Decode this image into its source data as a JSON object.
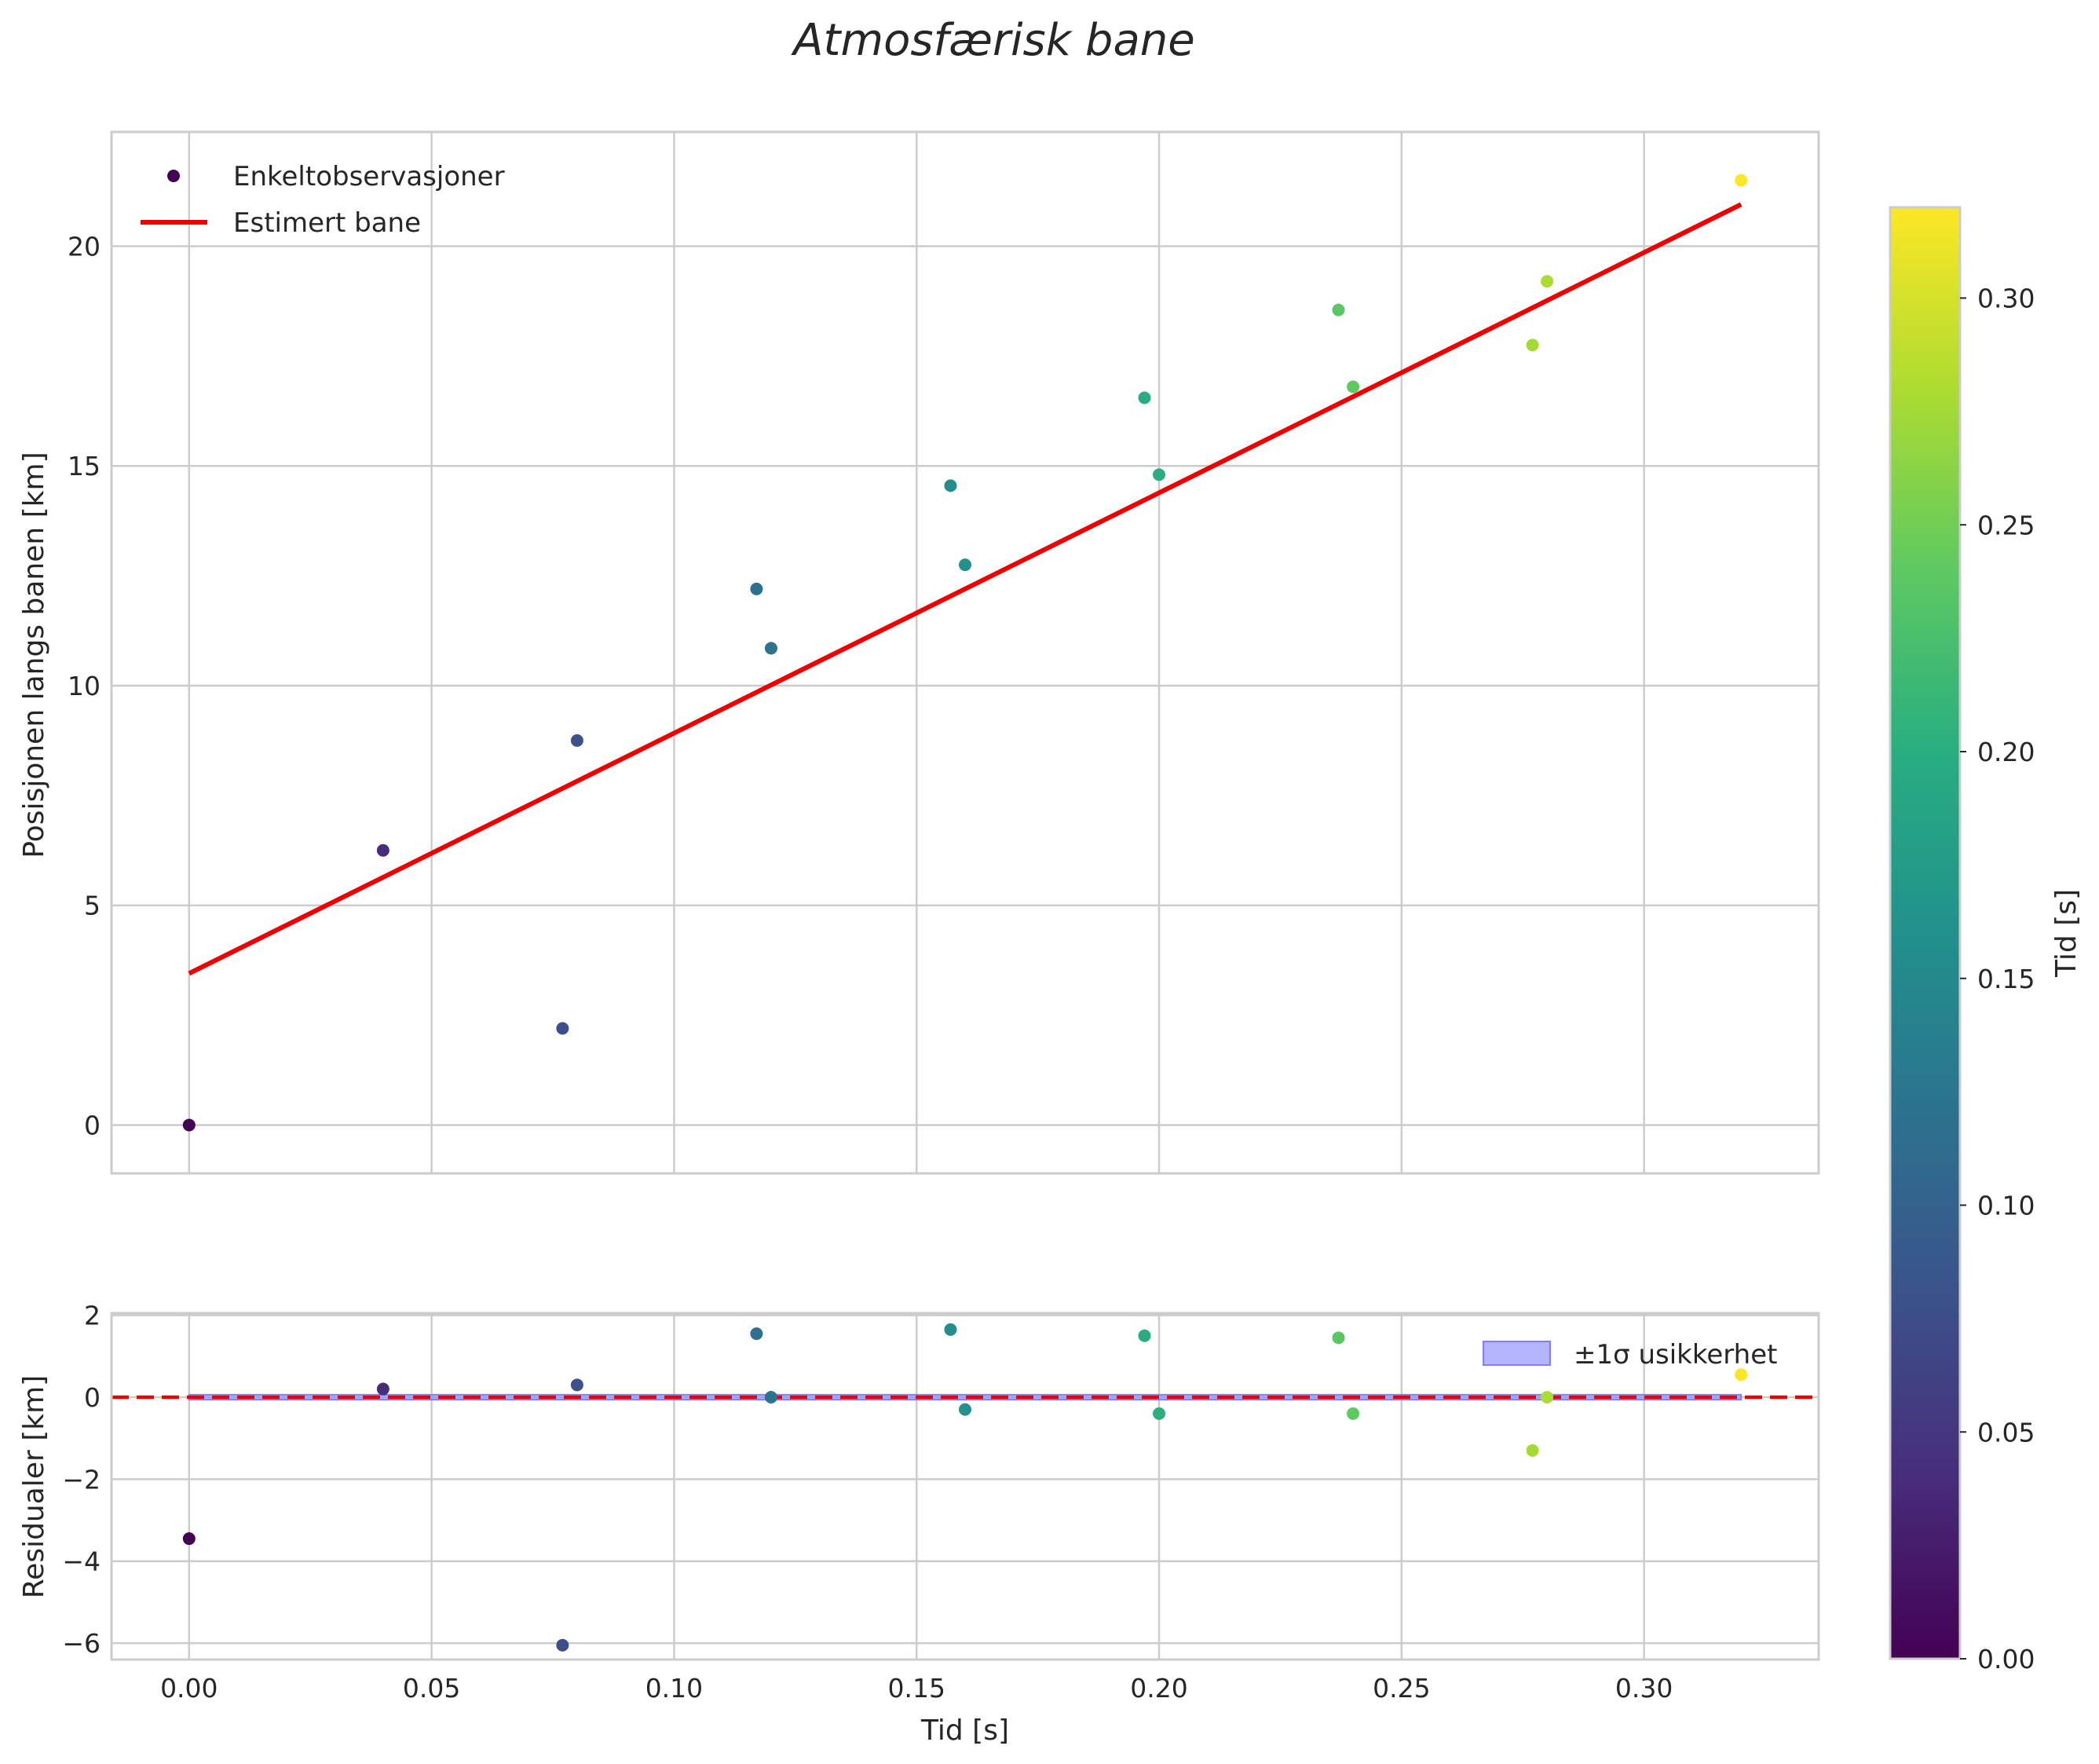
{
  "chart_data": {
    "title": "Atmosfærisk bane",
    "colormap": "viridis",
    "top_panel": {
      "type": "scatter",
      "ylabel": "Posisjonen langs banen [km]",
      "xlim": [
        -0.016,
        0.336
      ],
      "ylim": [
        -1.1,
        22.6
      ],
      "yticks": [
        0,
        5,
        10,
        15,
        20
      ],
      "grid": true,
      "legend": {
        "placement": "top-left",
        "scatter_label": "Enkeltobservasjoner",
        "line_label": "Estimert bane"
      },
      "observations": {
        "t": [
          0.0,
          0.04,
          0.077,
          0.08,
          0.117,
          0.12,
          0.157,
          0.16,
          0.197,
          0.2,
          0.237,
          0.24,
          0.277,
          0.28,
          0.32
        ],
        "pos": [
          0.0,
          6.25,
          2.2,
          8.75,
          12.2,
          10.85,
          14.55,
          12.75,
          16.55,
          14.8,
          18.55,
          16.8,
          17.75,
          19.2,
          21.5
        ]
      },
      "fit_line": {
        "color": "#ee0000",
        "t": [
          0.0,
          0.32
        ],
        "pos": [
          3.45,
          20.95
        ]
      }
    },
    "bottom_panel": {
      "type": "scatter",
      "ylabel": "Residualer [km]",
      "xlabel": "Tid [s]",
      "xlim": [
        -0.016,
        0.336
      ],
      "ylim": [
        -6.4,
        2.05
      ],
      "yticks": [
        -6,
        -4,
        -2,
        0,
        2
      ],
      "xticks": [
        0.0,
        0.05,
        0.1,
        0.15,
        0.2,
        0.25,
        0.3
      ],
      "xtick_labels": [
        "0.00",
        "0.05",
        "0.10",
        "0.15",
        "0.20",
        "0.25",
        "0.30"
      ],
      "zero_line_color": "#ee0000",
      "band": {
        "label": "±1σ usikkerhet",
        "sigma": 0.06,
        "color": "#8080ff"
      },
      "legend": {
        "placement": "top-right"
      },
      "residuals": [
        -3.45,
        0.2,
        -6.05,
        0.3,
        1.55,
        0.0,
        1.65,
        -0.3,
        1.5,
        -0.4,
        1.45,
        -0.4,
        -1.3,
        0.0,
        0.55
      ]
    },
    "colorbar": {
      "label": "Tid [s]",
      "range": [
        0.0,
        0.32
      ],
      "ticks": [
        0.0,
        0.05,
        0.1,
        0.15,
        0.2,
        0.25,
        0.3
      ],
      "tick_labels": [
        "0.00",
        "0.05",
        "0.10",
        "0.15",
        "0.20",
        "0.25",
        "0.30"
      ]
    }
  }
}
